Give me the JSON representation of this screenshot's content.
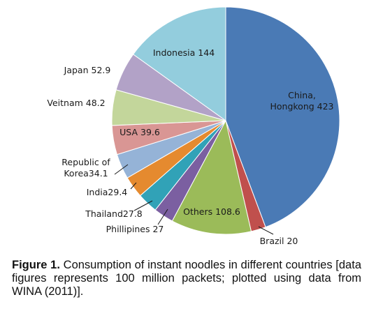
{
  "chart_data": {
    "type": "pie",
    "unit": "100 million packets",
    "slices": [
      {
        "label": "China, Hongkong",
        "lines": [
          "China,",
          "Hongkong 423"
        ],
        "value": 423,
        "color": "#4a7ab5"
      },
      {
        "label": "Brazil",
        "lines": [
          "Brazil 20"
        ],
        "value": 20,
        "color": "#c0504d"
      },
      {
        "label": "Others",
        "lines": [
          "Others 108.6"
        ],
        "value": 108.6,
        "color": "#9bbb59"
      },
      {
        "label": "Phillipines",
        "lines": [
          "Phillipines 27"
        ],
        "value": 27,
        "color": "#7b5fa1"
      },
      {
        "label": "Thailand",
        "lines": [
          "Thailand27.8"
        ],
        "value": 27.8,
        "color": "#31a2b7"
      },
      {
        "label": "India",
        "lines": [
          "India29.4"
        ],
        "value": 29.4,
        "color": "#e58a2f"
      },
      {
        "label": "Republic of Korea",
        "lines": [
          "Republic of",
          "Korea34.1"
        ],
        "value": 34.1,
        "color": "#95b3d7"
      },
      {
        "label": "USA",
        "lines": [
          "USA 39.6"
        ],
        "value": 39.6,
        "color": "#d99694"
      },
      {
        "label": "Veitnam",
        "lines": [
          "Veitnam 48.2"
        ],
        "value": 48.2,
        "color": "#c3d69b"
      },
      {
        "label": "Japan",
        "lines": [
          "Japan 52.9"
        ],
        "value": 52.9,
        "color": "#b2a2c7"
      },
      {
        "label": "Indonesia",
        "lines": [
          "Indonesia 144"
        ],
        "value": 144,
        "color": "#93cddd"
      }
    ]
  },
  "caption": {
    "label": "Figure 1.",
    "text": " Consumption of instant noodles in different countries [data figures represents 100 million packets; plotted using data from WINA (2011)]."
  }
}
